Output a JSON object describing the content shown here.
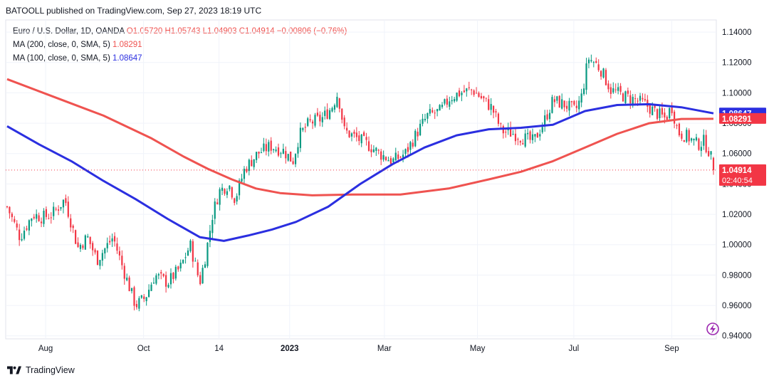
{
  "header": {
    "published": "BATOOLL published on TradingView.com, Sep 27, 2023 18:19 UTC"
  },
  "legend": {
    "symbol": "Euro / U.S. Dollar, 1D, OANDA",
    "ohlc": "O1.05720 H1.05743 L1.04903 C1.04914 −0.00806 (−0.76%)",
    "ma200_label": "MA (200, close, 0, SMA, 5)",
    "ma200_value": "1.08291",
    "ma100_label": "MA (100, close, 0, SMA, 5)",
    "ma100_value": "1.08647"
  },
  "footer": {
    "brand": "TradingView"
  },
  "colors": {
    "up": "#089981",
    "down": "#f23645",
    "ma200": "#ef5350",
    "ma100": "#2b2fe0",
    "grid": "#f0f3fa"
  },
  "icons": {
    "logo": "tradingview-logo-icon",
    "flash": "lightning-icon"
  },
  "chart_data": {
    "type": "candlestick",
    "y_ticks": [
      "1.14000",
      "1.12000",
      "1.10000",
      "1.08000",
      "1.06000",
      "1.04000",
      "1.02000",
      "1.00000",
      "0.98000",
      "0.96000",
      "0.94000"
    ],
    "y_tick_values": [
      1.14,
      1.12,
      1.1,
      1.08,
      1.06,
      1.04,
      1.02,
      1.0,
      0.98,
      0.96,
      0.94
    ],
    "ylim": [
      0.938,
      1.148
    ],
    "x_tick_labels": [
      "Aug",
      "Oct",
      "14",
      "2023",
      "Mar",
      "May",
      "Jul",
      "Sep"
    ],
    "x_tick_days": [
      24,
      85,
      132,
      176,
      235,
      293,
      353,
      414
    ],
    "total_days": 440,
    "price_path": [
      [
        0,
        1.025
      ],
      [
        8,
        1.005
      ],
      [
        16,
        1.02
      ],
      [
        22,
        1.018
      ],
      [
        28,
        1.02
      ],
      [
        36,
        1.03
      ],
      [
        44,
        0.998
      ],
      [
        50,
        1.005
      ],
      [
        56,
        0.99
      ],
      [
        66,
        1.005
      ],
      [
        72,
        0.985
      ],
      [
        80,
        0.96
      ],
      [
        86,
        0.965
      ],
      [
        92,
        0.98
      ],
      [
        100,
        0.975
      ],
      [
        108,
        0.985
      ],
      [
        114,
        1.0
      ],
      [
        120,
        0.975
      ],
      [
        124,
        0.995
      ],
      [
        128,
        1.02
      ],
      [
        132,
        1.035
      ],
      [
        138,
        1.04
      ],
      [
        142,
        1.03
      ],
      [
        148,
        1.05
      ],
      [
        156,
        1.06
      ],
      [
        164,
        1.065
      ],
      [
        172,
        1.062
      ],
      [
        178,
        1.055
      ],
      [
        182,
        1.072
      ],
      [
        188,
        1.08
      ],
      [
        196,
        1.083
      ],
      [
        202,
        1.09
      ],
      [
        206,
        1.1
      ],
      [
        210,
        1.075
      ],
      [
        218,
        1.07
      ],
      [
        226,
        1.065
      ],
      [
        232,
        1.06
      ],
      [
        240,
        1.055
      ],
      [
        248,
        1.06
      ],
      [
        256,
        1.075
      ],
      [
        262,
        1.085
      ],
      [
        270,
        1.088
      ],
      [
        276,
        1.097
      ],
      [
        282,
        1.1
      ],
      [
        290,
        1.102
      ],
      [
        296,
        1.096
      ],
      [
        302,
        1.09
      ],
      [
        308,
        1.075
      ],
      [
        316,
        1.073
      ],
      [
        322,
        1.07
      ],
      [
        328,
        1.068
      ],
      [
        334,
        1.08
      ],
      [
        340,
        1.095
      ],
      [
        348,
        1.092
      ],
      [
        354,
        1.088
      ],
      [
        358,
        1.098
      ],
      [
        362,
        1.123
      ],
      [
        366,
        1.12
      ],
      [
        370,
        1.115
      ],
      [
        376,
        1.102
      ],
      [
        384,
        1.098
      ],
      [
        392,
        1.095
      ],
      [
        398,
        1.092
      ],
      [
        404,
        1.087
      ],
      [
        410,
        1.083
      ],
      [
        414,
        1.091
      ],
      [
        418,
        1.074
      ],
      [
        424,
        1.071
      ],
      [
        430,
        1.066
      ],
      [
        434,
        1.068
      ],
      [
        438,
        1.06
      ],
      [
        440,
        1.0491
      ]
    ],
    "series": [
      {
        "name": "MA (200, close, 0, SMA, 5)",
        "points": [
          [
            0,
            1.109
          ],
          [
            30,
            1.097
          ],
          [
            60,
            1.085
          ],
          [
            90,
            1.07
          ],
          [
            110,
            1.058
          ],
          [
            125,
            1.05
          ],
          [
            140,
            1.043
          ],
          [
            155,
            1.037
          ],
          [
            170,
            1.034
          ],
          [
            190,
            1.0325
          ],
          [
            215,
            1.033
          ],
          [
            245,
            1.033
          ],
          [
            275,
            1.037
          ],
          [
            300,
            1.043
          ],
          [
            320,
            1.048
          ],
          [
            340,
            1.055
          ],
          [
            360,
            1.064
          ],
          [
            380,
            1.073
          ],
          [
            400,
            1.08
          ],
          [
            420,
            1.0828
          ],
          [
            440,
            1.0829
          ]
        ]
      },
      {
        "name": "MA (100, close, 0, SMA, 5)",
        "points": [
          [
            0,
            1.078
          ],
          [
            20,
            1.066
          ],
          [
            40,
            1.055
          ],
          [
            60,
            1.042
          ],
          [
            80,
            1.03
          ],
          [
            100,
            1.017
          ],
          [
            120,
            1.005
          ],
          [
            135,
            1.0025
          ],
          [
            150,
            1.006
          ],
          [
            165,
            1.01
          ],
          [
            180,
            1.015
          ],
          [
            200,
            1.025
          ],
          [
            220,
            1.04
          ],
          [
            240,
            1.053
          ],
          [
            260,
            1.064
          ],
          [
            280,
            1.072
          ],
          [
            300,
            1.076
          ],
          [
            320,
            1.077
          ],
          [
            340,
            1.079
          ],
          [
            360,
            1.088
          ],
          [
            380,
            1.092
          ],
          [
            400,
            1.0925
          ],
          [
            420,
            1.0905
          ],
          [
            440,
            1.0865
          ]
        ]
      }
    ],
    "last_close": 1.04914,
    "last_close_label": "1.04914",
    "countdown": "02:40:54",
    "ma100_last": 1.08647,
    "ma100_last_label": "1.08647",
    "ma200_last": 1.08291,
    "ma200_last_label": "1.08291"
  }
}
